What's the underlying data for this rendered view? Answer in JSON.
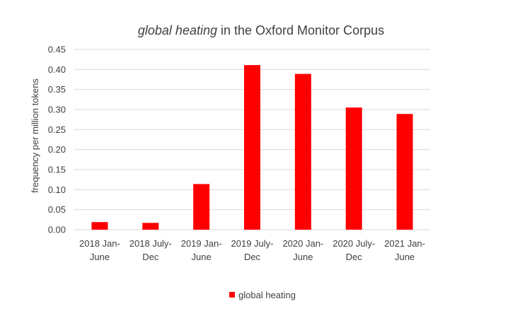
{
  "chart_data": {
    "type": "bar",
    "title": {
      "italic": "global heating",
      "rest": " in the Oxford Monitor Corpus"
    },
    "ylabel": "frequency per million tokens",
    "xlabel": "",
    "ylim": [
      0,
      0.45
    ],
    "yticks": [
      "0.00",
      "0.05",
      "0.10",
      "0.15",
      "0.20",
      "0.25",
      "0.30",
      "0.35",
      "0.40",
      "0.45"
    ],
    "grid": true,
    "legend_position": "bottom",
    "categories": [
      [
        "2018 Jan-",
        "June"
      ],
      [
        "2018 July-",
        "Dec"
      ],
      [
        "2019 Jan-",
        "June"
      ],
      [
        "2019 July-",
        "Dec"
      ],
      [
        "2020 Jan-",
        "June"
      ],
      [
        "2020 July-",
        "Dec"
      ],
      [
        "2021 Jan-",
        "June"
      ]
    ],
    "series": [
      {
        "name": "global heating",
        "color": "#ff0000",
        "values": [
          0.019,
          0.017,
          0.114,
          0.411,
          0.389,
          0.305,
          0.289
        ]
      }
    ]
  }
}
